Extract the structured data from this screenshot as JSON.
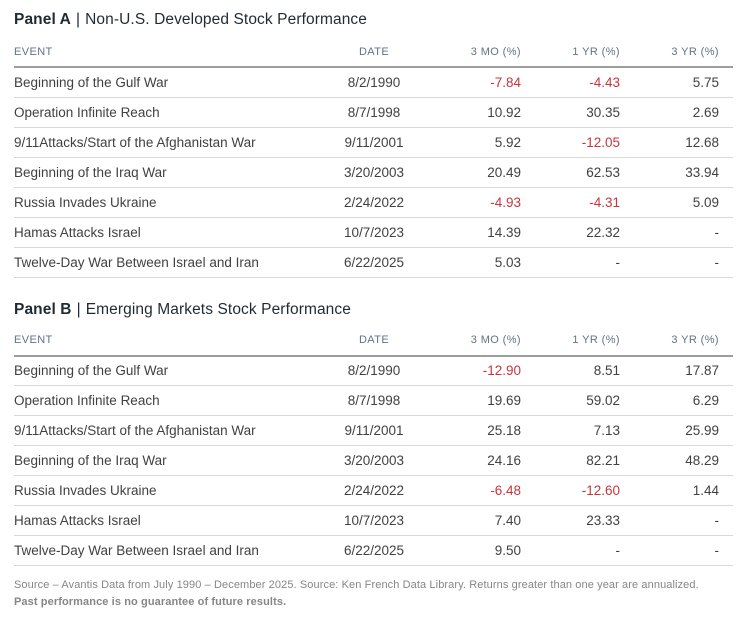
{
  "panels": [
    {
      "title_prefix": "Panel A",
      "title_divider": "|",
      "title_text": "Non-U.S. Developed Stock Performance",
      "columns": [
        "EVENT",
        "DATE",
        "3 MO (%)",
        "1 YR (%)",
        "3 YR (%)"
      ],
      "rows": [
        {
          "event": "Beginning of the Gulf War",
          "date": "8/2/1990",
          "mo3": "-7.84",
          "yr1": "-4.43",
          "yr3": "5.75"
        },
        {
          "event": "Operation Infinite Reach",
          "date": "8/7/1998",
          "mo3": "10.92",
          "yr1": "30.35",
          "yr3": "2.69"
        },
        {
          "event": "9/11Attacks/Start of the Afghanistan War",
          "date": "9/11/2001",
          "mo3": "5.92",
          "yr1": "-12.05",
          "yr3": "12.68"
        },
        {
          "event": "Beginning of the Iraq War",
          "date": "3/20/2003",
          "mo3": "20.49",
          "yr1": "62.53",
          "yr3": "33.94"
        },
        {
          "event": "Russia Invades Ukraine",
          "date": "2/24/2022",
          "mo3": "-4.93",
          "yr1": "-4.31",
          "yr3": "5.09"
        },
        {
          "event": "Hamas Attacks Israel",
          "date": "10/7/2023",
          "mo3": "14.39",
          "yr1": "22.32",
          "yr3": "-"
        },
        {
          "event": "Twelve-Day War Between Israel and Iran",
          "date": "6/22/2025",
          "mo3": "5.03",
          "yr1": "-",
          "yr3": "-"
        }
      ]
    },
    {
      "title_prefix": "Panel B",
      "title_divider": "|",
      "title_text": "Emerging Markets Stock Performance",
      "columns": [
        "EVENT",
        "DATE",
        "3 MO (%)",
        "1 YR (%)",
        "3 YR (%)"
      ],
      "rows": [
        {
          "event": "Beginning of the Gulf War",
          "date": "8/2/1990",
          "mo3": "-12.90",
          "yr1": "8.51",
          "yr3": "17.87"
        },
        {
          "event": "Operation Infinite Reach",
          "date": "8/7/1998",
          "mo3": "19.69",
          "yr1": "59.02",
          "yr3": "6.29"
        },
        {
          "event": "9/11Attacks/Start of the Afghanistan War",
          "date": "9/11/2001",
          "mo3": "25.18",
          "yr1": "7.13",
          "yr3": "25.99"
        },
        {
          "event": "Beginning of the Iraq War",
          "date": "3/20/2003",
          "mo3": "24.16",
          "yr1": "82.21",
          "yr3": "48.29"
        },
        {
          "event": "Russia Invades Ukraine",
          "date": "2/24/2022",
          "mo3": "-6.48",
          "yr1": "-12.60",
          "yr3": "1.44"
        },
        {
          "event": "Hamas Attacks Israel",
          "date": "10/7/2023",
          "mo3": "7.40",
          "yr1": "23.33",
          "yr3": "-"
        },
        {
          "event": "Twelve-Day War Between Israel and Iran",
          "date": "6/22/2025",
          "mo3": "9.50",
          "yr1": "-",
          "yr3": "-"
        }
      ]
    }
  ],
  "footer": {
    "line1": "Source – Avantis Data from July 1990 – December 2025. Source: Ken French Data Library. Returns greater than one year are annualized.",
    "line2": "Past performance is no guarantee of future results."
  },
  "colors": {
    "title": "#1f2b33",
    "header": "#5d7489",
    "body": "#414141",
    "negative": "#c8353e",
    "row-border": "#d9d9d9",
    "header-border": "#9d9d9d",
    "footer": "#868686",
    "page-bg": "#ffffff"
  }
}
